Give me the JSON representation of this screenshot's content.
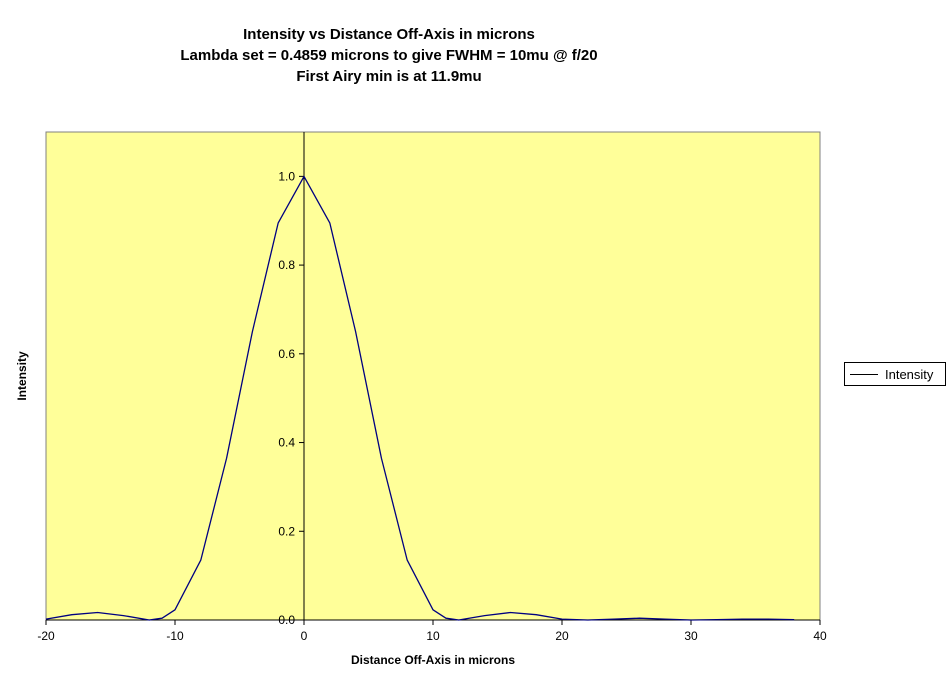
{
  "chart_data": {
    "type": "line",
    "title": [
      "Intensity vs Distance Off-Axis in microns",
      "Lambda set = 0.4859 microns to give FWHM = 10mu @ f/20",
      "First Airy min is at 11.9mu"
    ],
    "xlabel": "Distance Off-Axis in microns",
    "ylabel": "Intensity",
    "xlim": [
      -20,
      40
    ],
    "ylim": [
      0.0,
      1.1
    ],
    "xticks": [
      -20,
      -10,
      0,
      10,
      20,
      30,
      40
    ],
    "yticks": [
      0.0,
      0.2,
      0.4,
      0.6,
      0.8,
      1.0
    ],
    "ytick_labels": [
      "0.0",
      "0.2",
      "0.4",
      "0.6",
      "0.8",
      "1.0"
    ],
    "grid": false,
    "legend_position": "right",
    "plot_background": "#ffff99",
    "series": [
      {
        "name": "Intensity",
        "color": "#000080",
        "x": [
          -20,
          -18,
          -16,
          -14,
          -12,
          -11,
          -10,
          -8,
          -6,
          -4,
          -2,
          0,
          2,
          4,
          6,
          8,
          10,
          11,
          12,
          14,
          16,
          18,
          20,
          22,
          24,
          26,
          28,
          30,
          32,
          34,
          36,
          38
        ],
        "y": [
          0.002,
          0.012,
          0.017,
          0.01,
          0.0,
          0.004,
          0.023,
          0.135,
          0.365,
          0.65,
          0.895,
          1.0,
          0.895,
          0.65,
          0.365,
          0.135,
          0.023,
          0.004,
          0.0,
          0.01,
          0.017,
          0.012,
          0.002,
          0.0,
          0.002,
          0.004,
          0.002,
          0.0,
          0.001,
          0.002,
          0.002,
          0.001
        ]
      }
    ]
  }
}
